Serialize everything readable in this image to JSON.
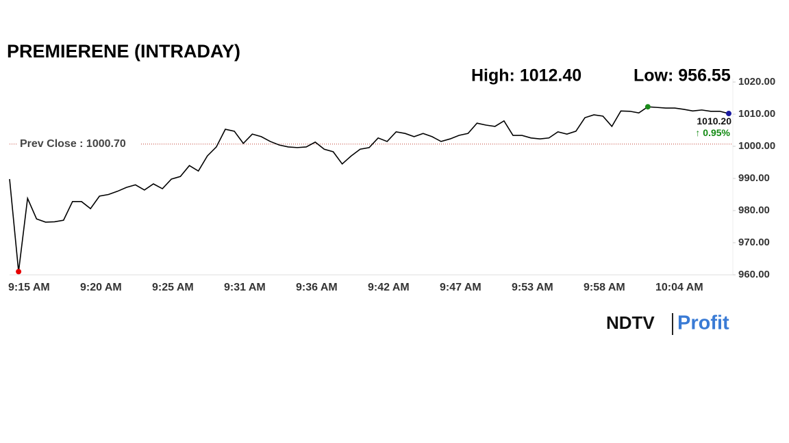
{
  "chart_data": {
    "type": "line",
    "title": "PREMIERENE (INTRADAY)",
    "high_text": "High: 1012.40",
    "low_text": "Low: 956.55",
    "prev_close": 1000.7,
    "prev_close_text": "Prev Close : 1000.70",
    "last_text": "1010.20",
    "change_text": "↑ 0.95%",
    "brand": "NDTV",
    "brand_sub": "Profit",
    "categories": [
      "9:15 AM",
      null,
      null,
      null,
      null,
      null,
      null,
      null,
      "9:20 AM",
      null,
      null,
      null,
      null,
      null,
      null,
      null,
      "9:25 AM",
      null,
      null,
      null,
      null,
      null,
      null,
      null,
      "9:31 AM",
      null,
      null,
      null,
      null,
      null,
      null,
      null,
      "9:36 AM",
      null,
      null,
      null,
      null,
      null,
      null,
      null,
      "9:42 AM",
      null,
      null,
      null,
      null,
      null,
      null,
      null,
      "9:47 AM",
      null,
      null,
      null,
      null,
      null,
      null,
      null,
      "9:53 AM",
      null,
      null,
      null,
      null,
      null,
      null,
      null,
      "9:58 AM",
      null,
      null,
      null,
      null,
      null,
      null,
      null,
      "10:04 AM",
      null,
      null,
      null,
      null,
      null,
      null,
      null,
      null
    ],
    "series": [
      {
        "name": "PREMIERENE",
        "color": "#000000",
        "values": [
          989.8,
          961,
          983.8,
          977.4,
          976.4,
          976.5,
          977,
          982.8,
          982.8,
          980.6,
          984.5,
          985,
          986,
          987.2,
          988,
          986.4,
          988.3,
          986.8,
          989.8,
          990.6,
          994,
          992.3,
          997,
          999.8,
          1005.3,
          1004.7,
          1000.9,
          1003.8,
          1003,
          1001.5,
          1000.4,
          999.8,
          999.6,
          999.8,
          1001.3,
          999.1,
          998.3,
          994.5,
          997,
          999.1,
          999.6,
          1002.6,
          1001.5,
          1004.5,
          1004,
          1003,
          1004,
          1003,
          1001.5,
          1002.3,
          1003.4,
          1004,
          1007.2,
          1006.6,
          1006.2,
          1007.9,
          1003.4,
          1003.4,
          1002.6,
          1002.3,
          1002.6,
          1004.5,
          1003.8,
          1004.7,
          1008.9,
          1009.8,
          1009.4,
          1006.2,
          1011,
          1010.9,
          1010.4,
          1012.3,
          1012.1,
          1011.9,
          1011.9,
          1011.5,
          1011,
          1011.3,
          1010.9,
          1010.9,
          1010.2
        ]
      }
    ],
    "ylim": [
      960,
      1020
    ],
    "yticks": [
      {
        "value": 960,
        "label": "960.00"
      },
      {
        "value": 970,
        "label": "970.00"
      },
      {
        "value": 980,
        "label": "980.00"
      },
      {
        "value": 990,
        "label": "990.00"
      },
      {
        "value": 1000,
        "label": "1000.00"
      },
      {
        "value": 1010,
        "label": "1010.00"
      },
      {
        "value": 1020,
        "label": "1020.00"
      }
    ],
    "low_color": "#e60000",
    "high_color": "#1a8a1a",
    "last_color": "#1a1aa0",
    "prev_close_color": "#c0392b",
    "change_color": "#138a13"
  }
}
